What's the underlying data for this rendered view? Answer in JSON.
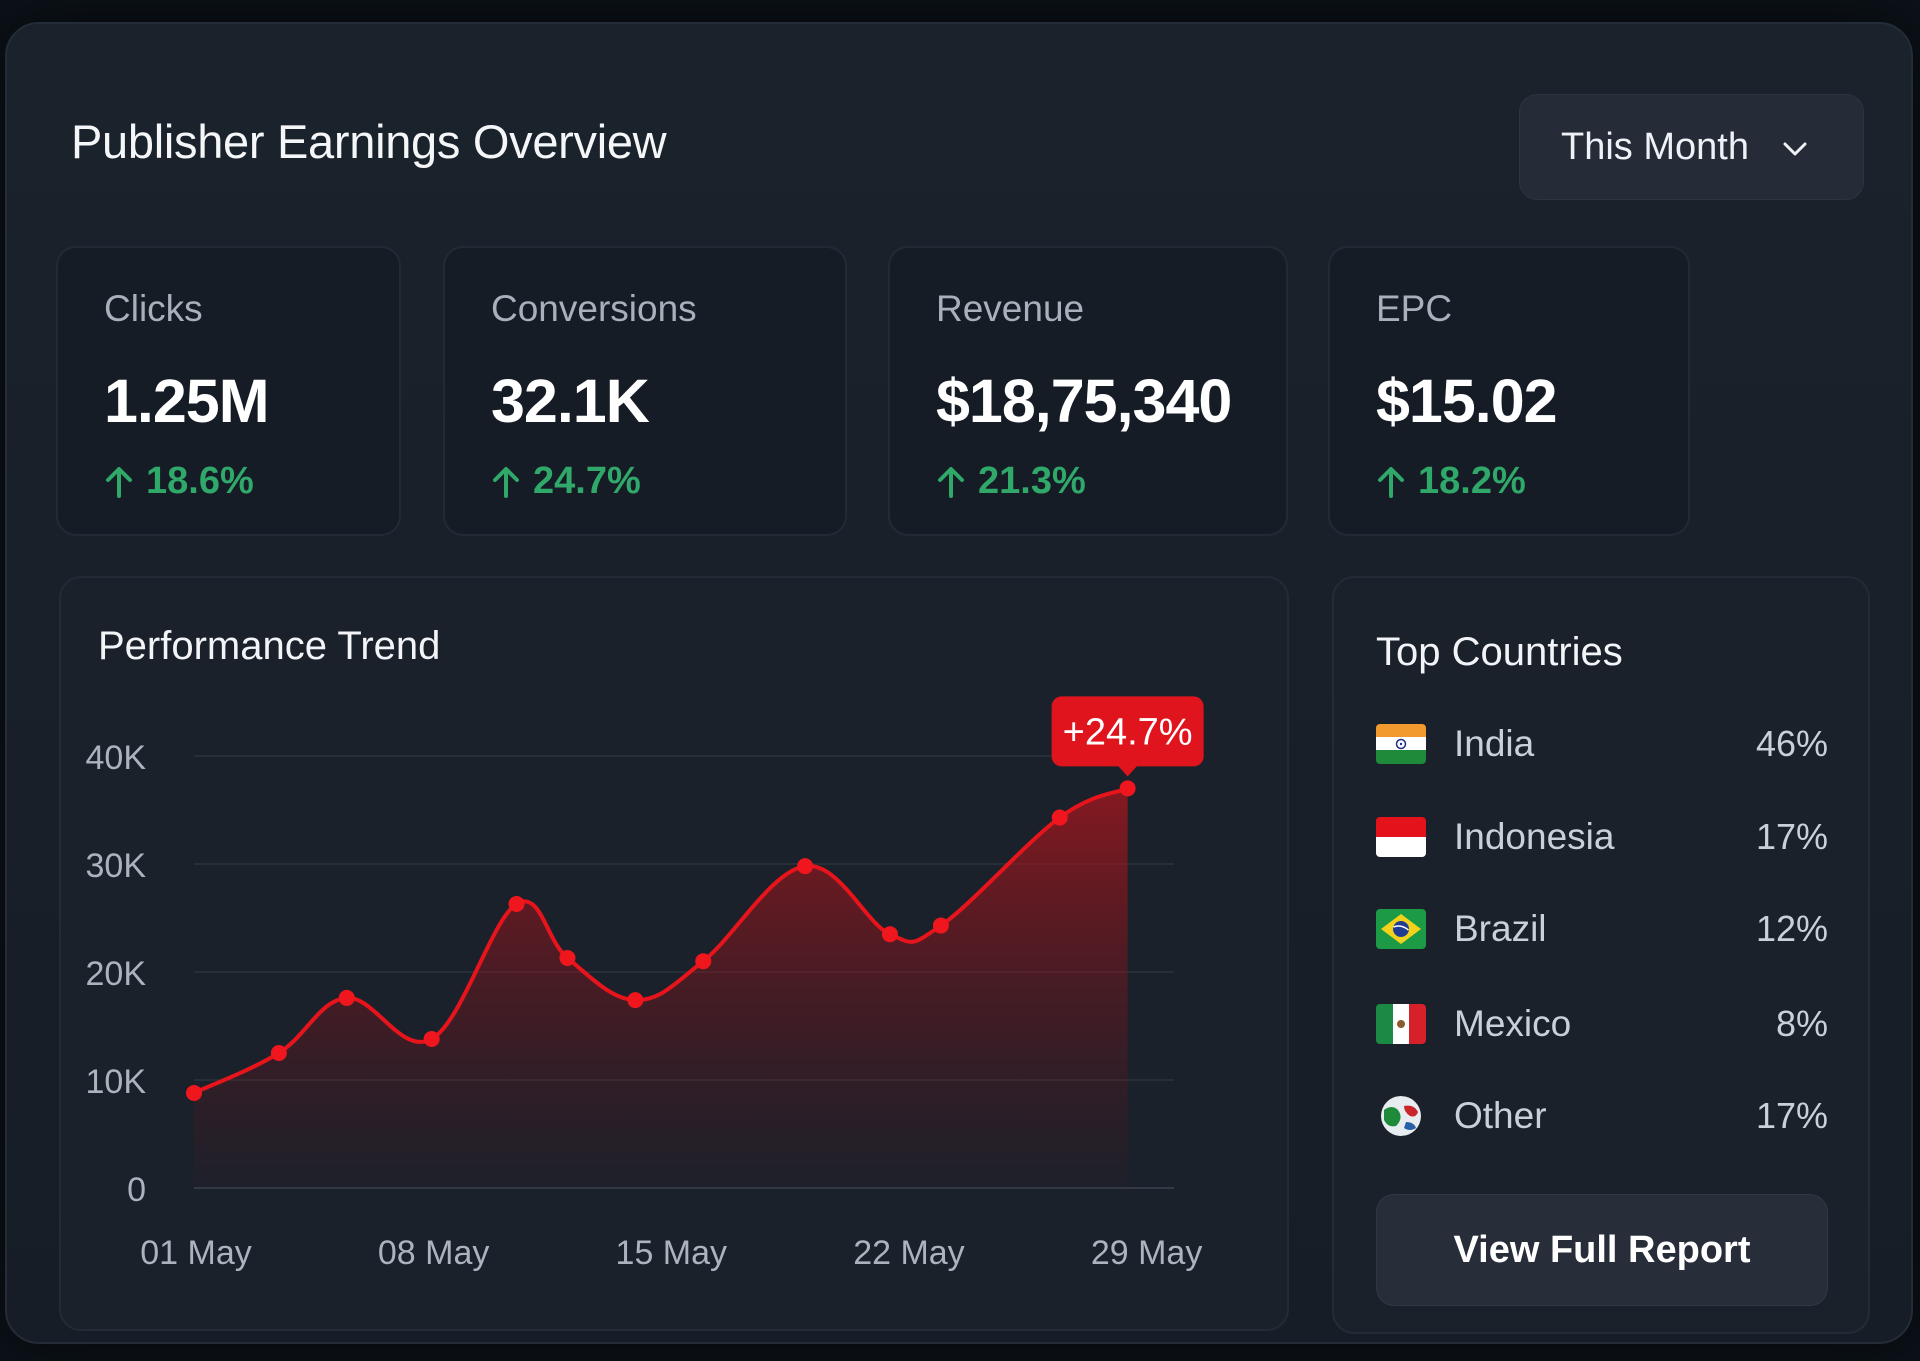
{
  "header": {
    "title": "Publisher Earnings Overview",
    "period_label": "This Month"
  },
  "kpis": [
    {
      "label": "Clicks",
      "value": "1.25M",
      "delta": "18.6%"
    },
    {
      "label": "Conversions",
      "value": "32.1K",
      "delta": "24.7%"
    },
    {
      "label": "Revenue",
      "value": "$18,75,340",
      "delta": "21.3%"
    },
    {
      "label": "EPC",
      "value": "$15.02",
      "delta": "18.2%"
    }
  ],
  "colors": {
    "accent": "#e0141c",
    "positive": "#2fa86a",
    "background": "#161d26"
  },
  "chart": {
    "title": "Performance Trend",
    "badge": "+24.7%"
  },
  "chart_data": {
    "type": "area",
    "title": "Performance Trend",
    "x_tick_labels": [
      "01 May",
      "08 May",
      "15 May",
      "22 May",
      "29 May"
    ],
    "y_tick_labels": [
      "0",
      "10K",
      "20K",
      "30K",
      "40K"
    ],
    "ylim": [
      0,
      40000
    ],
    "xlim": [
      1,
      29
    ],
    "grid": true,
    "series": [
      {
        "x": [
          1,
          3.5,
          5.5,
          8,
          10.5,
          12,
          14,
          16,
          19,
          21.5,
          23,
          26.5,
          28.5
        ],
        "values": [
          8800,
          12500,
          17600,
          13800,
          26300,
          21300,
          17400,
          21000,
          29800,
          23500,
          24300,
          34300,
          37000
        ]
      }
    ],
    "annotation": {
      "text": "+24.7%",
      "at_x": 28.5
    }
  },
  "countries": {
    "title": "Top Countries",
    "items": [
      {
        "name": "India",
        "pct": "46%",
        "flag": "india-flag-icon"
      },
      {
        "name": "Indonesia",
        "pct": "17%",
        "flag": "indonesia-flag-icon"
      },
      {
        "name": "Brazil",
        "pct": "12%",
        "flag": "brazil-flag-icon"
      },
      {
        "name": "Mexico",
        "pct": "8%",
        "flag": "mexico-flag-icon"
      },
      {
        "name": "Other",
        "pct": "17%",
        "flag": "globe-icon"
      }
    ],
    "button_label": "View Full Report"
  }
}
